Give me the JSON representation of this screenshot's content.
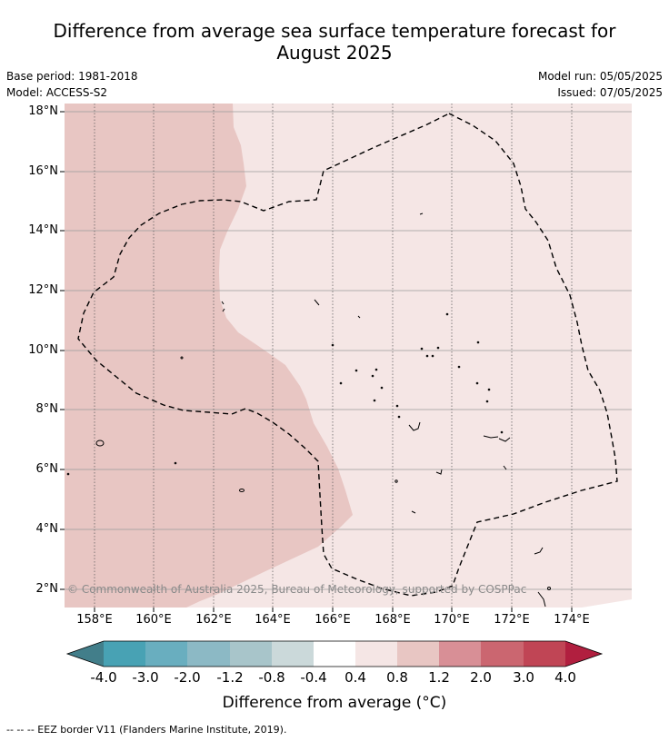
{
  "title_line1": "Difference from average sea surface temperature forecast for",
  "title_line2": "August 2025",
  "base_period": "Base period: 1981-2018",
  "model": "Model: ACCESS-S2",
  "model_run": "Model run: 05/05/2025",
  "issued": "Issued: 07/05/2025",
  "credit": "© Commonwealth of Australia 2025, Bureau of Meteorology, supported by COSPPac",
  "footer": "--  --  -- EEZ border V11 (Flanders Marine Institute, 2019).",
  "colors": {
    "anomaly_0_8_to_1_2": "#e8c6c3",
    "anomaly_0_4_to_0_8": "#f5e6e5",
    "eez_border": "#000000"
  },
  "map": {
    "lat_labels": [
      "18°N",
      "16°N",
      "14°N",
      "12°N",
      "10°N",
      "8°N",
      "6°N",
      "4°N",
      "2°N"
    ],
    "lon_labels": [
      "158°E",
      "160°E",
      "162°E",
      "164°E",
      "166°E",
      "168°E",
      "170°E",
      "172°E",
      "174°E"
    ]
  },
  "colorbar": {
    "title": "Difference from average (°C)",
    "tick_labels": [
      "-4.0",
      "-3.0",
      "-2.0",
      "-1.2",
      "-0.8",
      "-0.4",
      "0.4",
      "0.8",
      "1.2",
      "2.0",
      "3.0",
      "4.0"
    ],
    "colors": [
      "#427e8a",
      "#48a2b4",
      "#69aebf",
      "#8cb9c5",
      "#a8c5ca",
      "#cbd9da",
      "#ffffff",
      "#f5e6e5",
      "#e8c6c3",
      "#d88f96",
      "#cb6670",
      "#c04555",
      "#b11f3f"
    ]
  }
}
